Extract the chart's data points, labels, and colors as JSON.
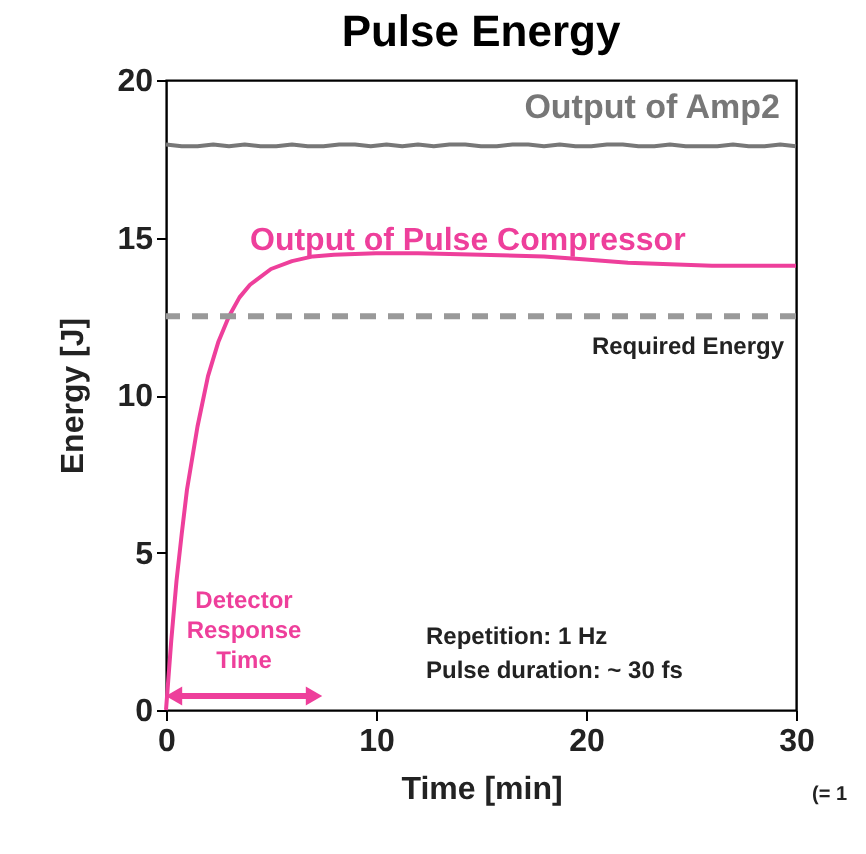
{
  "chart_data": {
    "type": "line",
    "title": "Pulse Energy",
    "xlabel": "Time [min]",
    "ylabel": "Energy [J]",
    "xlim": [
      0,
      30
    ],
    "ylim": [
      0,
      20
    ],
    "xticks": [
      0,
      10,
      20,
      30
    ],
    "yticks": [
      0,
      5,
      10,
      15,
      20
    ],
    "grid": false,
    "legend": false,
    "marker": "none",
    "line_style": "solid",
    "series": [
      {
        "name": "Output of Amp2",
        "color": "#777777",
        "x": [
          0,
          0.75,
          1.5,
          2.25,
          3,
          3.75,
          4.5,
          5.25,
          6,
          6.75,
          7.5,
          8.25,
          9,
          9.75,
          10.5,
          11.25,
          12,
          12.75,
          13.5,
          14.25,
          15,
          15.75,
          16.5,
          17.25,
          18,
          18.75,
          19.5,
          20.25,
          21,
          21.75,
          22.5,
          23.25,
          24,
          24.75,
          25.5,
          26.25,
          27,
          27.75,
          28.5,
          29.25,
          30
        ],
        "values": [
          17.95,
          17.9,
          17.9,
          17.95,
          17.9,
          17.95,
          17.9,
          17.9,
          17.95,
          17.9,
          17.9,
          17.95,
          17.95,
          17.9,
          17.95,
          17.9,
          17.95,
          17.9,
          17.95,
          17.95,
          17.9,
          17.9,
          17.95,
          17.95,
          17.9,
          17.95,
          17.9,
          17.9,
          17.95,
          17.95,
          17.9,
          17.9,
          17.95,
          17.9,
          17.9,
          17.9,
          17.95,
          17.9,
          17.9,
          17.95,
          17.9
        ]
      },
      {
        "name": "Output of Pulse Compressor",
        "color": "#ee3f9b",
        "x": [
          0,
          0.25,
          0.5,
          0.75,
          1,
          1.5,
          2,
          2.5,
          3,
          3.5,
          4,
          5,
          6,
          7,
          8,
          10,
          12,
          15,
          18,
          20,
          22,
          24,
          26,
          28,
          30
        ],
        "values": [
          0,
          2.2,
          4.1,
          5.6,
          7.0,
          9.0,
          10.6,
          11.7,
          12.5,
          13.1,
          13.5,
          14.0,
          14.25,
          14.4,
          14.45,
          14.5,
          14.5,
          14.45,
          14.4,
          14.3,
          14.2,
          14.15,
          14.1,
          14.1,
          14.1
        ]
      }
    ],
    "ref_lines": [
      {
        "axis": "y",
        "value": 12.5,
        "label": "Required Energy",
        "color": "#999999",
        "line_style": "dashed"
      }
    ],
    "annotations": [
      "Detector\nResponse\nTime",
      "Repetition: 1 Hz\nPulse duration: ~ 30 fs",
      "(= 1"
    ]
  }
}
